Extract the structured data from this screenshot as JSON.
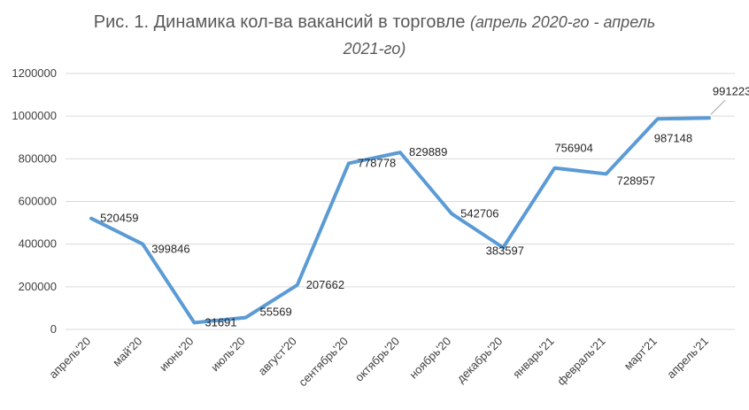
{
  "chart_data": {
    "type": "line",
    "title": "Рис. 1. Динамика кол-ва вакансий в торговле",
    "subtitle_line1": "(апрель 2020-го - апрель",
    "subtitle_line2": "2021-го)",
    "categories": [
      "апрель'20",
      "май'20",
      "июнь'20",
      "июль'20",
      "август'20",
      "сентябрь'20",
      "октябрь'20",
      "ноябрь'20",
      "декабрь'20",
      "январь'21",
      "февраль'21",
      "март'21",
      "апрель'21"
    ],
    "values": [
      520459,
      399846,
      31691,
      55569,
      207662,
      778778,
      829889,
      542706,
      383597,
      756904,
      728957,
      987148,
      991223
    ],
    "data_labels": [
      "520459",
      "399846",
      "31691",
      "55569",
      "207662",
      "778778",
      "829889",
      "542706",
      "383597",
      "756904",
      "728957",
      "987148",
      "991223"
    ],
    "y_ticks": [
      "0",
      "200000",
      "400000",
      "600000",
      "800000",
      "1000000",
      "1200000"
    ],
    "ylim": [
      0,
      1200000
    ],
    "grid": true,
    "line_color": "#5B9BD5",
    "grid_color": "#D9D9D9"
  }
}
